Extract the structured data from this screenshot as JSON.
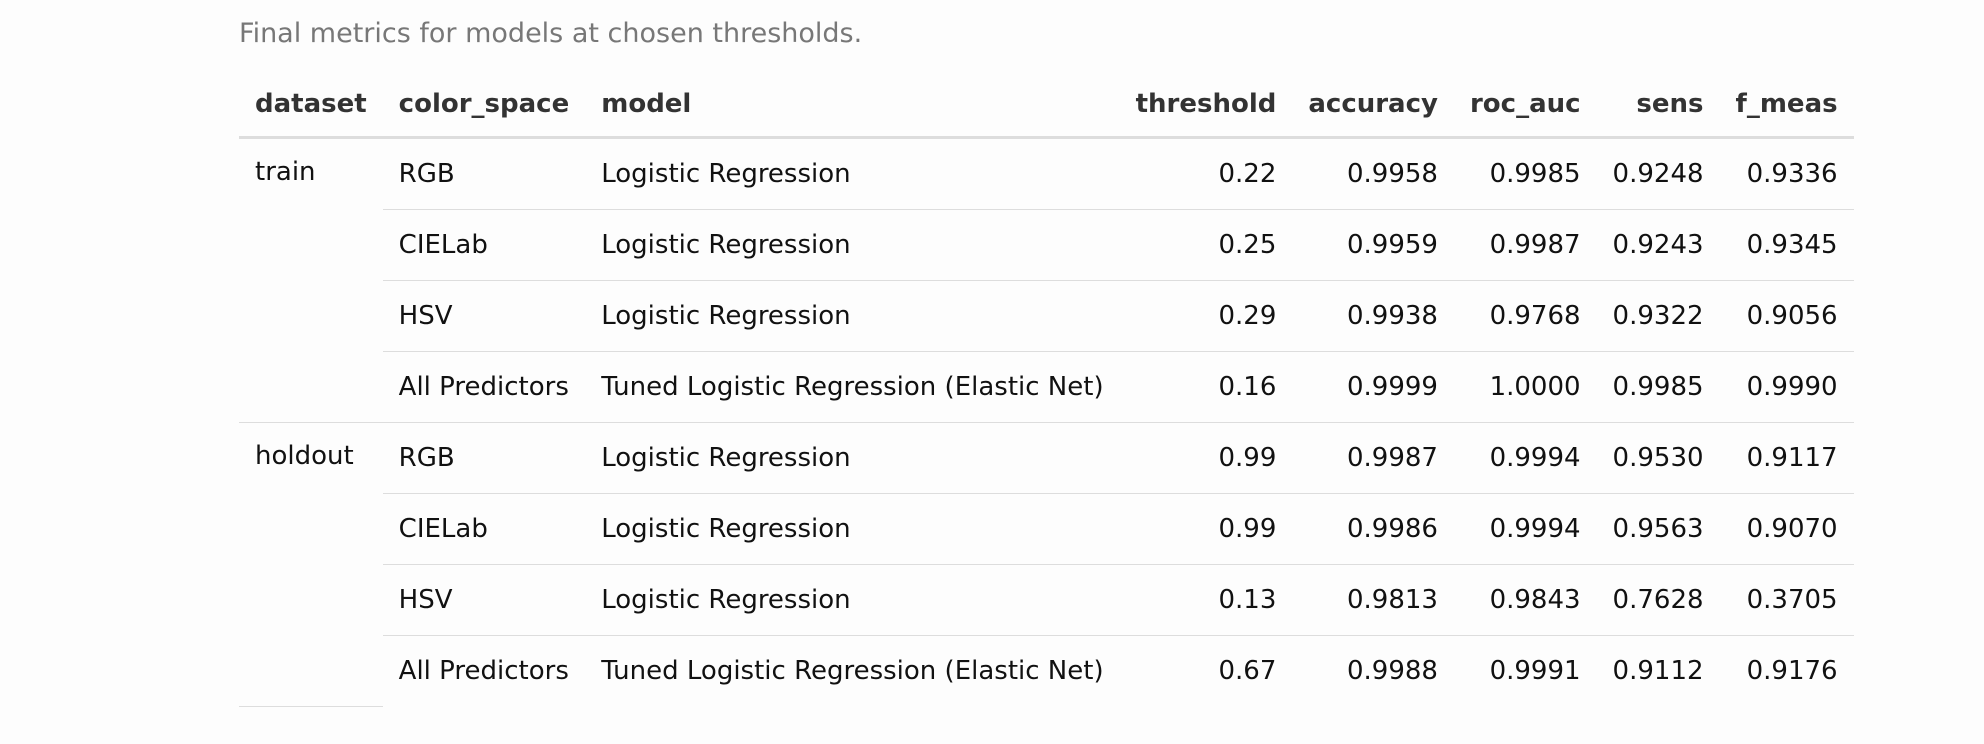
{
  "caption": "Final metrics for models at chosen thresholds.",
  "table": {
    "headers": {
      "dataset": "dataset",
      "color_space": "color_space",
      "model": "model",
      "threshold": "threshold",
      "accuracy": "accuracy",
      "roc_auc": "roc_auc",
      "sens": "sens",
      "f_meas": "f_meas"
    },
    "groups": [
      {
        "dataset": "train",
        "rows": [
          {
            "color_space": "RGB",
            "model": "Logistic Regression",
            "threshold": "0.22",
            "accuracy": "0.9958",
            "roc_auc": "0.9985",
            "sens": "0.9248",
            "f_meas": "0.9336"
          },
          {
            "color_space": "CIELab",
            "model": "Logistic Regression",
            "threshold": "0.25",
            "accuracy": "0.9959",
            "roc_auc": "0.9987",
            "sens": "0.9243",
            "f_meas": "0.9345"
          },
          {
            "color_space": "HSV",
            "model": "Logistic Regression",
            "threshold": "0.29",
            "accuracy": "0.9938",
            "roc_auc": "0.9768",
            "sens": "0.9322",
            "f_meas": "0.9056"
          },
          {
            "color_space": "All Predictors",
            "model": "Tuned Logistic Regression (Elastic Net)",
            "threshold": "0.16",
            "accuracy": "0.9999",
            "roc_auc": "1.0000",
            "sens": "0.9985",
            "f_meas": "0.9990"
          }
        ]
      },
      {
        "dataset": "holdout",
        "rows": [
          {
            "color_space": "RGB",
            "model": "Logistic Regression",
            "threshold": "0.99",
            "accuracy": "0.9987",
            "roc_auc": "0.9994",
            "sens": "0.9530",
            "f_meas": "0.9117"
          },
          {
            "color_space": "CIELab",
            "model": "Logistic Regression",
            "threshold": "0.99",
            "accuracy": "0.9986",
            "roc_auc": "0.9994",
            "sens": "0.9563",
            "f_meas": "0.9070"
          },
          {
            "color_space": "HSV",
            "model": "Logistic Regression",
            "threshold": "0.13",
            "accuracy": "0.9813",
            "roc_auc": "0.9843",
            "sens": "0.7628",
            "f_meas": "0.3705"
          },
          {
            "color_space": "All Predictors",
            "model": "Tuned Logistic Regression (Elastic Net)",
            "threshold": "0.67",
            "accuracy": "0.9988",
            "roc_auc": "0.9991",
            "sens": "0.9112",
            "f_meas": "0.9176"
          }
        ]
      }
    ]
  }
}
